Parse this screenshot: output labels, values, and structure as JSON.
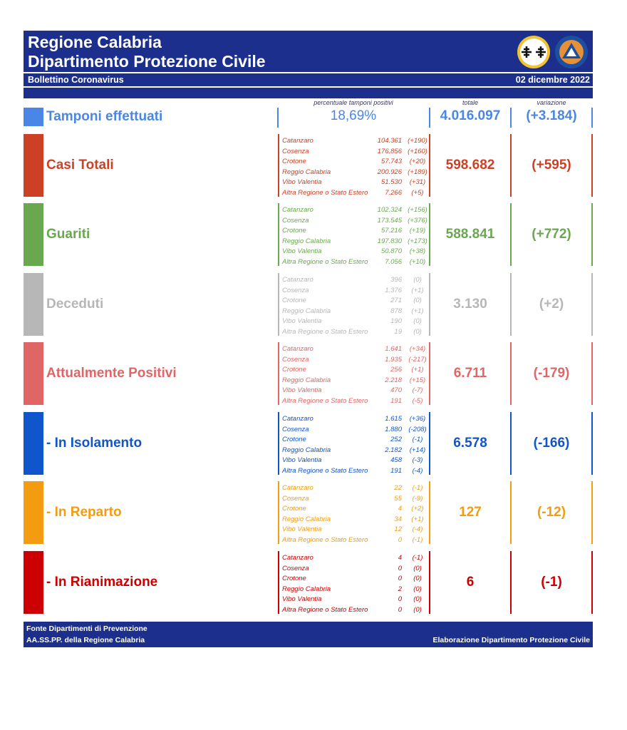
{
  "header": {
    "title_line1": "Regione Calabria",
    "title_line2": "Dipartimento Protezione Civile",
    "subtitle": "Bollettino Coronavirus",
    "date": "02 dicembre 2022",
    "logo_label": "PROTEZIONE CIVILE"
  },
  "column_heads": {
    "pct": "percentuale tamponi positivi",
    "total": "totale",
    "variation": "variazione"
  },
  "tamponi": {
    "label": "Tamponi effettuati",
    "pct": "18,69%",
    "total": "4.016.097",
    "variation": "(+3.184)",
    "color": "#4a86e6"
  },
  "sections": [
    {
      "label": "Casi Totali",
      "color": "#cc4125",
      "total": "598.682",
      "variation": "(+595)",
      "rows": [
        {
          "name": "Catanzaro",
          "value": "104.361",
          "delta": "(+190)"
        },
        {
          "name": "Cosenza",
          "value": "176.856",
          "delta": "(+160)"
        },
        {
          "name": "Crotone",
          "value": "57.743",
          "delta": "(+20)"
        },
        {
          "name": "Reggio Calabria",
          "value": "200.926",
          "delta": "(+189)"
        },
        {
          "name": "Vibo Valentia",
          "value": "51.530",
          "delta": "(+31)"
        },
        {
          "name": "Altra Regione o Stato Estero",
          "value": "7.266",
          "delta": "(+5)"
        }
      ]
    },
    {
      "label": "Guariti",
      "color": "#6aa84f",
      "total": "588.841",
      "variation": "(+772)",
      "rows": [
        {
          "name": "Catanzaro",
          "value": "102.324",
          "delta": "(+156)"
        },
        {
          "name": "Cosenza",
          "value": "173.545",
          "delta": "(+376)"
        },
        {
          "name": "Crotone",
          "value": "57.216",
          "delta": "(+19)"
        },
        {
          "name": "Reggio Calabria",
          "value": "197.830",
          "delta": "(+173)"
        },
        {
          "name": "Vibo Valentia",
          "value": "50.870",
          "delta": "(+38)"
        },
        {
          "name": "Altra Regione o Stato Estero",
          "value": "7.056",
          "delta": "(+10)"
        }
      ]
    },
    {
      "label": "Deceduti",
      "color": "#b7b7b7",
      "total": "3.130",
      "variation": "(+2)",
      "rows": [
        {
          "name": "Catanzaro",
          "value": "396",
          "delta": "(0)"
        },
        {
          "name": "Cosenza",
          "value": "1.376",
          "delta": "(+1)"
        },
        {
          "name": "Crotone",
          "value": "271",
          "delta": "(0)"
        },
        {
          "name": "Reggio Calabria",
          "value": "878",
          "delta": "(+1)"
        },
        {
          "name": "Vibo Valentia",
          "value": "190",
          "delta": "(0)"
        },
        {
          "name": "Altra Regione o Stato Estero",
          "value": "19",
          "delta": "(0)"
        }
      ]
    },
    {
      "label": "Attualmente Positivi",
      "color": "#e06666",
      "total": "6.711",
      "variation": "(-179)",
      "rows": [
        {
          "name": "Catanzaro",
          "value": "1.641",
          "delta": "(+34)"
        },
        {
          "name": "Cosenza",
          "value": "1.935",
          "delta": "(-217)"
        },
        {
          "name": "Crotone",
          "value": "256",
          "delta": "(+1)"
        },
        {
          "name": "Reggio Calabria",
          "value": "2.218",
          "delta": "(+15)"
        },
        {
          "name": "Vibo Valentia",
          "value": "470",
          "delta": "(-7)"
        },
        {
          "name": "Altra Regione o Stato Estero",
          "value": "191",
          "delta": "(-5)"
        }
      ]
    },
    {
      "label": " - In Isolamento",
      "color": "#1155cc",
      "total": "6.578",
      "variation": "(-166)",
      "rows": [
        {
          "name": "Catanzaro",
          "value": "1.615",
          "delta": "(+36)"
        },
        {
          "name": "Cosenza",
          "value": "1.880",
          "delta": "(-208)"
        },
        {
          "name": "Crotone",
          "value": "252",
          "delta": "(-1)"
        },
        {
          "name": "Reggio Calabria",
          "value": "2.182",
          "delta": "(+14)"
        },
        {
          "name": "Vibo Valentia",
          "value": "458",
          "delta": "(-3)"
        },
        {
          "name": "Altra Regione o Stato Estero",
          "value": "191",
          "delta": "(-4)"
        }
      ]
    },
    {
      "label": " - In Reparto",
      "color": "#f39c12",
      "total": "127",
      "variation": "(-12)",
      "rows": [
        {
          "name": "Catanzaro",
          "value": "22",
          "delta": "(-1)"
        },
        {
          "name": "Cosenza",
          "value": "55",
          "delta": "(-9)"
        },
        {
          "name": "Crotone",
          "value": "4",
          "delta": "(+2)"
        },
        {
          "name": "Reggio Calabria",
          "value": "34",
          "delta": "(+1)"
        },
        {
          "name": "Vibo Valentia",
          "value": "12",
          "delta": "(-4)"
        },
        {
          "name": "Altra Regione o Stato Estero",
          "value": "0",
          "delta": "(-1)"
        }
      ]
    },
    {
      "label": " - In Rianimazione",
      "color": "#cc0000",
      "total": "6",
      "variation": "(-1)",
      "rows": [
        {
          "name": "Catanzaro",
          "value": "4",
          "delta": "(-1)"
        },
        {
          "name": "Cosenza",
          "value": "0",
          "delta": "(0)"
        },
        {
          "name": "Crotone",
          "value": "0",
          "delta": "(0)"
        },
        {
          "name": "Reggio Calabria",
          "value": "2",
          "delta": "(0)"
        },
        {
          "name": "Vibo Valentia",
          "value": "0",
          "delta": "(0)"
        },
        {
          "name": "Altra Regione o Stato Estero",
          "value": "0",
          "delta": "(0)"
        }
      ]
    }
  ],
  "footer": {
    "source_line1": "Fonte Dipartimenti di Prevenzione",
    "source_line2": "AA.SS.PP.  della Regione Calabria",
    "credit": "Elaborazione Dipartimento Protezione Civile"
  }
}
